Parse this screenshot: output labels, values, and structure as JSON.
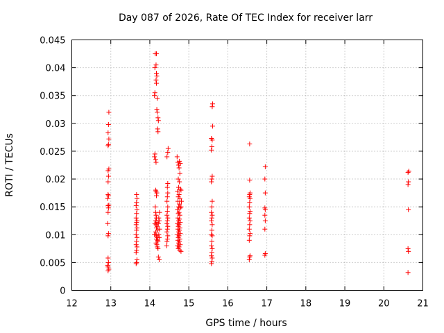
{
  "chart_data": {
    "type": "scatter",
    "title": "Day 087 of 2026, Rate Of TEC Index for receiver larr",
    "xlabel": "GPS time / hours",
    "ylabel": "ROTI / TECUs",
    "xlim": [
      12,
      21
    ],
    "ylim": [
      0,
      0.045
    ],
    "x_ticks": [
      "12",
      "13",
      "14",
      "15",
      "16",
      "17",
      "18",
      "19",
      "20",
      "21"
    ],
    "y_ticks": [
      "0",
      "0.005",
      "0.01",
      "0.015",
      "0.02",
      "0.025",
      "0.03",
      "0.035",
      "0.04",
      "0.045"
    ],
    "grid": true,
    "marker": "plus",
    "color": "#ff0000",
    "series": [
      {
        "name": "ROTI",
        "points": [
          [
            12.93,
            0.0035
          ],
          [
            12.93,
            0.0042
          ],
          [
            12.94,
            0.005
          ],
          [
            12.93,
            0.0058
          ],
          [
            12.95,
            0.0038
          ],
          [
            12.92,
            0.0045
          ],
          [
            12.93,
            0.0098
          ],
          [
            12.94,
            0.0102
          ],
          [
            12.92,
            0.012
          ],
          [
            12.93,
            0.014
          ],
          [
            12.94,
            0.0148
          ],
          [
            12.93,
            0.0152
          ],
          [
            12.95,
            0.0153
          ],
          [
            12.92,
            0.0165
          ],
          [
            12.94,
            0.017
          ],
          [
            12.93,
            0.0172
          ],
          [
            12.93,
            0.0195
          ],
          [
            12.94,
            0.0205
          ],
          [
            12.93,
            0.0215
          ],
          [
            12.95,
            0.0218
          ],
          [
            12.93,
            0.026
          ],
          [
            12.94,
            0.0262
          ],
          [
            12.95,
            0.0272
          ],
          [
            12.93,
            0.0283
          ],
          [
            12.94,
            0.0298
          ],
          [
            12.95,
            0.032
          ],
          [
            13.65,
            0.0048
          ],
          [
            13.66,
            0.005
          ],
          [
            13.67,
            0.0055
          ],
          [
            13.65,
            0.0068
          ],
          [
            13.66,
            0.0072
          ],
          [
            13.67,
            0.0078
          ],
          [
            13.65,
            0.0082
          ],
          [
            13.66,
            0.0088
          ],
          [
            13.67,
            0.0095
          ],
          [
            13.65,
            0.01
          ],
          [
            13.66,
            0.0108
          ],
          [
            13.67,
            0.0112
          ],
          [
            13.65,
            0.0118
          ],
          [
            13.66,
            0.0122
          ],
          [
            13.67,
            0.0125
          ],
          [
            13.65,
            0.013
          ],
          [
            13.66,
            0.0138
          ],
          [
            13.67,
            0.0145
          ],
          [
            13.65,
            0.0152
          ],
          [
            13.66,
            0.0158
          ],
          [
            13.67,
            0.0165
          ],
          [
            13.66,
            0.0172
          ],
          [
            14.12,
            0.01
          ],
          [
            14.13,
            0.012
          ],
          [
            14.14,
            0.015
          ],
          [
            14.12,
            0.024
          ],
          [
            14.13,
            0.0245
          ],
          [
            14.12,
            0.035
          ],
          [
            14.13,
            0.0355
          ],
          [
            14.13,
            0.04
          ],
          [
            14.14,
            0.0425
          ],
          [
            14.17,
            0.0425
          ],
          [
            14.16,
            0.0405
          ],
          [
            14.17,
            0.039
          ],
          [
            14.18,
            0.0385
          ],
          [
            14.16,
            0.0378
          ],
          [
            14.17,
            0.0372
          ],
          [
            14.19,
            0.0345
          ],
          [
            14.18,
            0.0325
          ],
          [
            14.19,
            0.032
          ],
          [
            14.21,
            0.031
          ],
          [
            14.22,
            0.0305
          ],
          [
            14.2,
            0.029
          ],
          [
            14.21,
            0.0285
          ],
          [
            14.15,
            0.0235
          ],
          [
            14.16,
            0.023
          ],
          [
            14.15,
            0.018
          ],
          [
            14.16,
            0.0178
          ],
          [
            14.18,
            0.0175
          ],
          [
            14.17,
            0.017
          ],
          [
            14.15,
            0.014
          ],
          [
            14.16,
            0.0135
          ],
          [
            14.17,
            0.013
          ],
          [
            14.15,
            0.0125
          ],
          [
            14.18,
            0.0122
          ],
          [
            14.16,
            0.0118
          ],
          [
            14.19,
            0.0115
          ],
          [
            14.17,
            0.0112
          ],
          [
            14.2,
            0.0108
          ],
          [
            14.15,
            0.0105
          ],
          [
            14.16,
            0.01
          ],
          [
            14.18,
            0.0098
          ],
          [
            14.19,
            0.0095
          ],
          [
            14.17,
            0.0092
          ],
          [
            14.2,
            0.009
          ],
          [
            14.21,
            0.0088
          ],
          [
            14.16,
            0.0085
          ],
          [
            14.18,
            0.0082
          ],
          [
            14.19,
            0.0078
          ],
          [
            14.21,
            0.0075
          ],
          [
            14.22,
            0.006
          ],
          [
            14.24,
            0.0055
          ],
          [
            14.22,
            0.012
          ],
          [
            14.23,
            0.013
          ],
          [
            14.24,
            0.0125
          ],
          [
            14.25,
            0.011
          ],
          [
            14.23,
            0.01
          ],
          [
            14.24,
            0.0095
          ],
          [
            14.25,
            0.014
          ],
          [
            14.43,
            0.008
          ],
          [
            14.44,
            0.0088
          ],
          [
            14.45,
            0.0092
          ],
          [
            14.46,
            0.0098
          ],
          [
            14.44,
            0.0105
          ],
          [
            14.45,
            0.011
          ],
          [
            14.46,
            0.0115
          ],
          [
            14.44,
            0.012
          ],
          [
            14.45,
            0.0125
          ],
          [
            14.46,
            0.013
          ],
          [
            14.44,
            0.0135
          ],
          [
            14.45,
            0.0142
          ],
          [
            14.46,
            0.015
          ],
          [
            14.44,
            0.016
          ],
          [
            14.45,
            0.0168
          ],
          [
            14.46,
            0.0175
          ],
          [
            14.45,
            0.0185
          ],
          [
            14.46,
            0.0192
          ],
          [
            14.44,
            0.024
          ],
          [
            14.46,
            0.0248
          ],
          [
            14.47,
            0.0255
          ],
          [
            14.7,
            0.024
          ],
          [
            14.72,
            0.023
          ],
          [
            14.74,
            0.0225
          ],
          [
            14.76,
            0.0232
          ],
          [
            14.78,
            0.0228
          ],
          [
            14.75,
            0.022
          ],
          [
            14.77,
            0.021
          ],
          [
            14.73,
            0.02
          ],
          [
            14.76,
            0.0195
          ],
          [
            14.74,
            0.0185
          ],
          [
            14.78,
            0.0182
          ],
          [
            14.71,
            0.0178
          ],
          [
            14.75,
            0.0172
          ],
          [
            14.73,
            0.0168
          ],
          [
            14.77,
            0.0165
          ],
          [
            14.72,
            0.016
          ],
          [
            14.76,
            0.0155
          ],
          [
            14.74,
            0.015
          ],
          [
            14.78,
            0.0148
          ],
          [
            14.71,
            0.0145
          ],
          [
            14.75,
            0.014
          ],
          [
            14.73,
            0.0138
          ],
          [
            14.77,
            0.0135
          ],
          [
            14.72,
            0.013
          ],
          [
            14.76,
            0.0128
          ],
          [
            14.74,
            0.0125
          ],
          [
            14.78,
            0.0122
          ],
          [
            14.71,
            0.012
          ],
          [
            14.75,
            0.0118
          ],
          [
            14.73,
            0.0115
          ],
          [
            14.77,
            0.0112
          ],
          [
            14.72,
            0.011
          ],
          [
            14.76,
            0.0108
          ],
          [
            14.74,
            0.0105
          ],
          [
            14.78,
            0.0102
          ],
          [
            14.71,
            0.01
          ],
          [
            14.75,
            0.0098
          ],
          [
            14.73,
            0.0095
          ],
          [
            14.77,
            0.0092
          ],
          [
            14.72,
            0.009
          ],
          [
            14.76,
            0.0088
          ],
          [
            14.74,
            0.0085
          ],
          [
            14.78,
            0.0082
          ],
          [
            14.71,
            0.008
          ],
          [
            14.75,
            0.0078
          ],
          [
            14.73,
            0.0075
          ],
          [
            14.77,
            0.0072
          ],
          [
            14.8,
            0.007
          ],
          [
            14.8,
            0.015
          ],
          [
            14.81,
            0.016
          ],
          [
            14.8,
            0.018
          ],
          [
            15.58,
            0.0048
          ],
          [
            15.59,
            0.0052
          ],
          [
            15.6,
            0.0058
          ],
          [
            15.58,
            0.0062
          ],
          [
            15.59,
            0.0068
          ],
          [
            15.6,
            0.0075
          ],
          [
            15.58,
            0.008
          ],
          [
            15.59,
            0.0088
          ],
          [
            15.6,
            0.0098
          ],
          [
            15.58,
            0.01
          ],
          [
            15.59,
            0.0108
          ],
          [
            15.6,
            0.0118
          ],
          [
            15.58,
            0.0125
          ],
          [
            15.59,
            0.013
          ],
          [
            15.6,
            0.0135
          ],
          [
            15.58,
            0.014
          ],
          [
            15.59,
            0.015
          ],
          [
            15.6,
            0.016
          ],
          [
            15.58,
            0.0195
          ],
          [
            15.59,
            0.02
          ],
          [
            15.6,
            0.0205
          ],
          [
            15.58,
            0.0252
          ],
          [
            15.59,
            0.0258
          ],
          [
            15.6,
            0.027
          ],
          [
            15.58,
            0.0273
          ],
          [
            15.61,
            0.0295
          ],
          [
            15.6,
            0.033
          ],
          [
            15.61,
            0.0335
          ],
          [
            16.55,
            0.0055
          ],
          [
            16.56,
            0.006
          ],
          [
            16.57,
            0.0062
          ],
          [
            16.55,
            0.009
          ],
          [
            16.56,
            0.0098
          ],
          [
            16.57,
            0.0102
          ],
          [
            16.55,
            0.011
          ],
          [
            16.56,
            0.0118
          ],
          [
            16.57,
            0.0125
          ],
          [
            16.55,
            0.013
          ],
          [
            16.56,
            0.0138
          ],
          [
            16.57,
            0.0142
          ],
          [
            16.55,
            0.015
          ],
          [
            16.56,
            0.0158
          ],
          [
            16.57,
            0.0165
          ],
          [
            16.55,
            0.0168
          ],
          [
            16.56,
            0.0172
          ],
          [
            16.57,
            0.0175
          ],
          [
            16.56,
            0.0198
          ],
          [
            16.56,
            0.0263
          ],
          [
            16.95,
            0.0063
          ],
          [
            16.96,
            0.0066
          ],
          [
            16.95,
            0.011
          ],
          [
            16.96,
            0.0125
          ],
          [
            16.95,
            0.0135
          ],
          [
            16.96,
            0.0145
          ],
          [
            16.95,
            0.0148
          ],
          [
            16.96,
            0.0175
          ],
          [
            16.95,
            0.02
          ],
          [
            16.96,
            0.0222
          ],
          [
            20.62,
            0.0032
          ],
          [
            20.63,
            0.007
          ],
          [
            20.62,
            0.0075
          ],
          [
            20.63,
            0.0145
          ],
          [
            20.62,
            0.019
          ],
          [
            20.63,
            0.0195
          ],
          [
            20.62,
            0.0212
          ],
          [
            20.64,
            0.0214
          ]
        ]
      }
    ]
  }
}
